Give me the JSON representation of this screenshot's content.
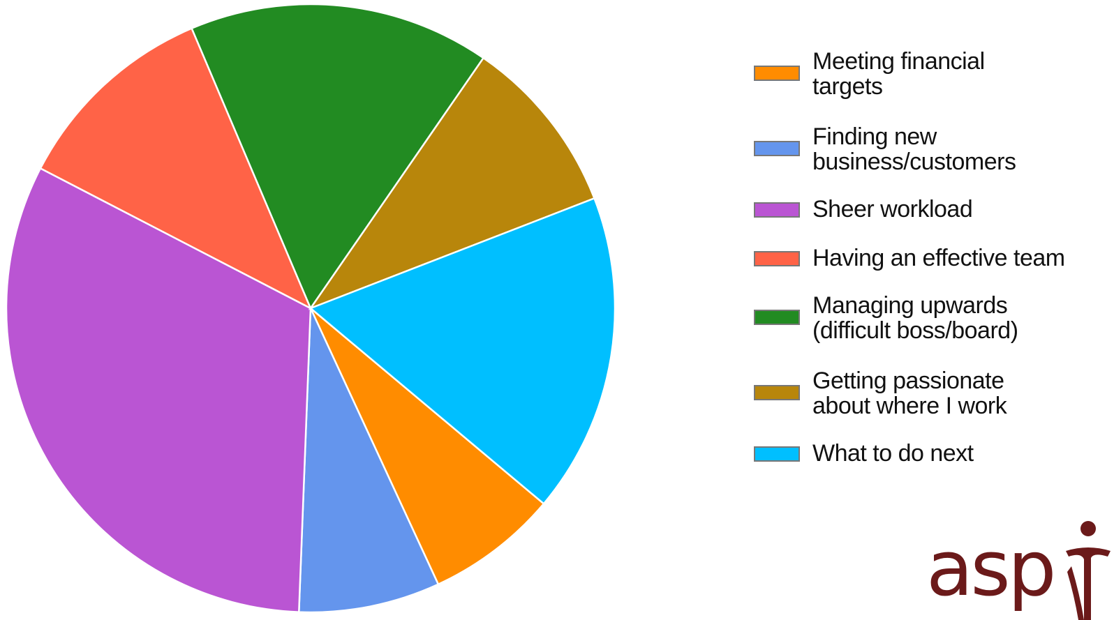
{
  "chart_data": {
    "type": "pie",
    "title": "",
    "slices": [
      {
        "label": "Meeting financial targets",
        "value": 7,
        "color": "#FF8C00"
      },
      {
        "label": "Finding new business/customers",
        "value": 7.5,
        "color": "#6495ED"
      },
      {
        "label": "Sheer workload",
        "value": 32,
        "color": "#BA55D3"
      },
      {
        "label": "Having an effective team",
        "value": 11,
        "color": "#FF6347"
      },
      {
        "label": "Managing upwards (difficult boss/board)",
        "value": 16,
        "color": "#228B22"
      },
      {
        "label": "Getting passionate about where I work",
        "value": 9.5,
        "color": "#B8860B"
      },
      {
        "label": "What to do next",
        "value": 17,
        "color": "#00BFFF"
      }
    ],
    "legend_position": "right"
  },
  "legend": {
    "lines": [
      [
        "Meeting financial",
        "targets"
      ],
      [
        "Finding new",
        "business/customers"
      ],
      [
        "Sheer workload"
      ],
      [
        "Having an effective team"
      ],
      [
        "Managing upwards",
        "(difficult boss/board)"
      ],
      [
        "Getting passionate",
        "about where I work"
      ],
      [
        "What to do next"
      ]
    ]
  },
  "logo": {
    "text": "asp",
    "color": "#6B1A1A"
  }
}
